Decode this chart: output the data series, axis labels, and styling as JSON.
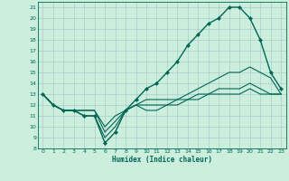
{
  "xlabel": "Humidex (Indice chaleur)",
  "bg_color": "#cceedd",
  "grid_color": "#aacccc",
  "line_color": "#006655",
  "xlim": [
    -0.5,
    23.5
  ],
  "ylim": [
    8,
    21.5
  ],
  "yticks": [
    8,
    9,
    10,
    11,
    12,
    13,
    14,
    15,
    16,
    17,
    18,
    19,
    20,
    21
  ],
  "xticks": [
    0,
    1,
    2,
    3,
    4,
    5,
    6,
    7,
    8,
    9,
    10,
    11,
    12,
    13,
    14,
    15,
    16,
    17,
    18,
    19,
    20,
    21,
    22,
    23
  ],
  "series": [
    {
      "x": [
        0,
        1,
        2,
        3,
        4,
        5,
        6,
        7,
        8,
        9,
        10,
        11,
        12,
        13,
        14,
        15,
        16,
        17,
        18,
        19,
        20,
        21,
        22,
        23
      ],
      "y": [
        13,
        12,
        11.5,
        11.5,
        11,
        11,
        8.5,
        9.5,
        11.5,
        12.5,
        13.5,
        14,
        15,
        16,
        17.5,
        18.5,
        19.5,
        20,
        21,
        21,
        20,
        18,
        15,
        13.5
      ],
      "marker": "D",
      "ms": 2.0,
      "lw": 1.0
    },
    {
      "x": [
        0,
        1,
        2,
        3,
        4,
        5,
        6,
        7,
        8,
        9,
        10,
        11,
        12,
        13,
        14,
        15,
        16,
        17,
        18,
        19,
        20,
        21,
        22,
        23
      ],
      "y": [
        13,
        12,
        11.5,
        11.5,
        11,
        11,
        9,
        10,
        11.5,
        12,
        12.5,
        12.5,
        12.5,
        12.5,
        13,
        13.5,
        14,
        14.5,
        15,
        15,
        15.5,
        15,
        14.5,
        13
      ],
      "marker": null,
      "ms": 0,
      "lw": 0.8
    },
    {
      "x": [
        0,
        1,
        2,
        3,
        4,
        5,
        6,
        7,
        8,
        9,
        10,
        11,
        12,
        13,
        14,
        15,
        16,
        17,
        18,
        19,
        20,
        21,
        22,
        23
      ],
      "y": [
        13,
        12,
        11.5,
        11.5,
        11.5,
        11.5,
        9.5,
        10.5,
        11.5,
        12,
        12,
        12,
        12,
        12.5,
        12.5,
        13,
        13,
        13.5,
        13.5,
        13.5,
        14,
        13.5,
        13,
        13
      ],
      "marker": null,
      "ms": 0,
      "lw": 0.8
    },
    {
      "x": [
        0,
        1,
        2,
        3,
        4,
        5,
        6,
        7,
        8,
        9,
        10,
        11,
        12,
        13,
        14,
        15,
        16,
        17,
        18,
        19,
        20,
        21,
        22,
        23
      ],
      "y": [
        13,
        12,
        11.5,
        11.5,
        11.5,
        11.5,
        10,
        11,
        11.5,
        12,
        11.5,
        11.5,
        12,
        12,
        12.5,
        12.5,
        13,
        13,
        13,
        13,
        13.5,
        13,
        13,
        13
      ],
      "marker": null,
      "ms": 0,
      "lw": 0.8
    }
  ]
}
